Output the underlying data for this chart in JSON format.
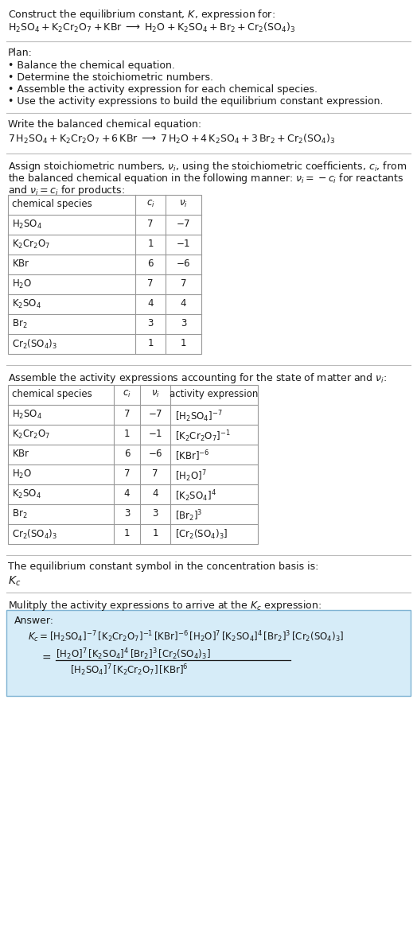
{
  "title_line1": "Construct the equilibrium constant, $K$, expression for:",
  "title_line2": "$\\mathrm{H_2SO_4 + K_2Cr_2O_7 + KBr \\;\\longrightarrow\\; H_2O + K_2SO_4 + Br_2 + Cr_2(SO_4)_3}$",
  "plan_header": "Plan:",
  "plan_bullets": [
    "• Balance the chemical equation.",
    "• Determine the stoichiometric numbers.",
    "• Assemble the activity expression for each chemical species.",
    "• Use the activity expressions to build the equilibrium constant expression."
  ],
  "balanced_header": "Write the balanced chemical equation:",
  "balanced_eq": "$7\\,\\mathrm{H_2SO_4} + \\mathrm{K_2Cr_2O_7} + 6\\,\\mathrm{KBr} \\;\\longrightarrow\\; 7\\,\\mathrm{H_2O} + 4\\,\\mathrm{K_2SO_4} + 3\\,\\mathrm{Br_2} + \\mathrm{Cr_2(SO_4)_3}$",
  "stoich_line1": "Assign stoichiometric numbers, $\\nu_i$, using the stoichiometric coefficients, $c_i$, from",
  "stoich_line2": "the balanced chemical equation in the following manner: $\\nu_i = -c_i$ for reactants",
  "stoich_line3": "and $\\nu_i = c_i$ for products:",
  "table1_headers": [
    "chemical species",
    "$c_i$",
    "$\\nu_i$"
  ],
  "table1_rows": [
    [
      "$\\mathrm{H_2SO_4}$",
      "7",
      "$-7$"
    ],
    [
      "$\\mathrm{K_2Cr_2O_7}$",
      "1",
      "$-1$"
    ],
    [
      "$\\mathrm{KBr}$",
      "6",
      "$-6$"
    ],
    [
      "$\\mathrm{H_2O}$",
      "7",
      "7"
    ],
    [
      "$\\mathrm{K_2SO_4}$",
      "4",
      "4"
    ],
    [
      "$\\mathrm{Br_2}$",
      "3",
      "3"
    ],
    [
      "$\\mathrm{Cr_2(SO_4)_3}$",
      "1",
      "1"
    ]
  ],
  "activity_header": "Assemble the activity expressions accounting for the state of matter and $\\nu_i$:",
  "table2_headers": [
    "chemical species",
    "$c_i$",
    "$\\nu_i$",
    "activity expression"
  ],
  "table2_rows": [
    [
      "$\\mathrm{H_2SO_4}$",
      "7",
      "$-7$",
      "$[\\mathrm{H_2SO_4}]^{-7}$"
    ],
    [
      "$\\mathrm{K_2Cr_2O_7}$",
      "1",
      "$-1$",
      "$[\\mathrm{K_2Cr_2O_7}]^{-1}$"
    ],
    [
      "$\\mathrm{KBr}$",
      "6",
      "$-6$",
      "$[\\mathrm{KBr}]^{-6}$"
    ],
    [
      "$\\mathrm{H_2O}$",
      "7",
      "7",
      "$[\\mathrm{H_2O}]^{7}$"
    ],
    [
      "$\\mathrm{K_2SO_4}$",
      "4",
      "4",
      "$[\\mathrm{K_2SO_4}]^{4}$"
    ],
    [
      "$\\mathrm{Br_2}$",
      "3",
      "3",
      "$[\\mathrm{Br_2}]^{3}$"
    ],
    [
      "$\\mathrm{Cr_2(SO_4)_3}$",
      "1",
      "1",
      "$[\\mathrm{Cr_2(SO_4)_3}]$"
    ]
  ],
  "kc_header": "The equilibrium constant symbol in the concentration basis is:",
  "kc_symbol": "$K_c$",
  "multiply_header": "Mulitply the activity expressions to arrive at the $K_c$ expression:",
  "answer_label": "Answer:",
  "answer_line1": "$K_c = [\\mathrm{H_2SO_4}]^{-7}\\,[\\mathrm{K_2Cr_2O_7}]^{-1}\\,[\\mathrm{KBr}]^{-6}\\,[\\mathrm{H_2O}]^7\\,[\\mathrm{K_2SO_4}]^4\\,[\\mathrm{Br_2}]^3\\,[\\mathrm{Cr_2(SO_4)_3}]$",
  "answer_eq_sign": "$=$",
  "answer_line2_num": "$[\\mathrm{H_2O}]^7\\,[\\mathrm{K_2SO_4}]^4\\,[\\mathrm{Br_2}]^3\\,[\\mathrm{Cr_2(SO_4)_3}]$",
  "answer_line2_den": "$[\\mathrm{H_2SO_4}]^7\\,[\\mathrm{K_2Cr_2O_7}]\\,[\\mathrm{KBr}]^6$",
  "bg_color": "#ffffff",
  "answer_box_bg": "#d6ecf8",
  "answer_box_border": "#7fb3d3",
  "table_border_color": "#999999",
  "text_color": "#1a1a1a",
  "font_size": 9.0,
  "small_font": 8.5
}
